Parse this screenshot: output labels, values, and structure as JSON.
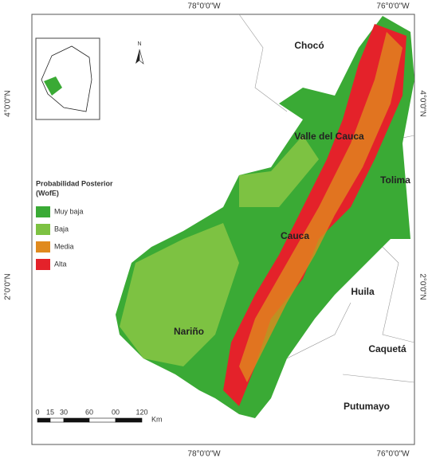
{
  "coordinates": {
    "top": [
      "78°0'0\"W",
      "76°0'0\"W"
    ],
    "bottom": [
      "78°0'0\"W",
      "76°0'0\"W"
    ],
    "left": [
      "4°0'0\"N",
      "2°0'0\"N"
    ],
    "right": [
      "4°0'0\"N",
      "2°0'0\"N"
    ]
  },
  "regions": [
    "Chocó",
    "Valle del Cauca",
    "Tolima",
    "Cauca",
    "Huila",
    "Nariño",
    "Caquetá",
    "Putumayo"
  ],
  "north": "N",
  "legend": {
    "title_lines": [
      "Probabilidad Posterior",
      "(WofE)"
    ],
    "items": [
      {
        "label": "Muy baja",
        "color": "#3aaa35"
      },
      {
        "label": "Baja",
        "color": "#7dc242"
      },
      {
        "label": "Media",
        "color": "#e08a1e"
      },
      {
        "label": "Alta",
        "color": "#e4222a"
      }
    ]
  },
  "scale_bar": {
    "labels": [
      "0",
      "15",
      "30",
      "60",
      "00",
      "120"
    ],
    "unit": "Km"
  }
}
